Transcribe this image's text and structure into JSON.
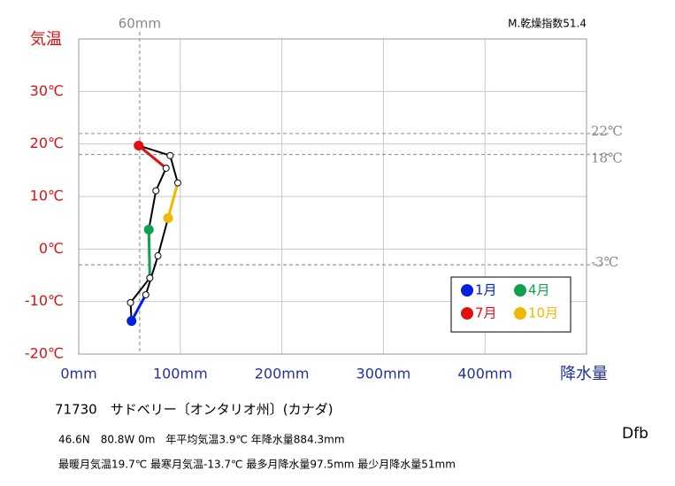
{
  "chart_data": {
    "type": "line",
    "title": "71730　サドベリー〔オンタリオ州〕(カナダ)",
    "subtitle": "M.乾燥指数51.4",
    "notes": [
      "46.6N　80.8W 0m　年平均気温3.9℃ 年降水量884.3mm",
      "最暖月気温19.7℃ 最寒月気温-13.7℃ 最多月降水量97.5mm 最少月降水量51mm"
    ],
    "climate_class": "Dfb",
    "y_label": "気温",
    "x_label": "降水量",
    "x": [
      52,
      51,
      70,
      69,
      76,
      86,
      59,
      90,
      97.5,
      88,
      78,
      66
    ],
    "categories": [
      "1月",
      null,
      null,
      "4月",
      null,
      null,
      "7月",
      null,
      null,
      "10月",
      null,
      null
    ],
    "point_colors": [
      "#0020e0",
      null,
      null,
      "#10a050",
      null,
      null,
      "#e01010",
      null,
      null,
      "#f0b800",
      null,
      null
    ],
    "series": [
      {
        "values": [
          -13.7,
          -10.2,
          -5.5,
          3.7,
          11.1,
          15.4,
          19.7,
          17.8,
          12.6,
          5.9,
          -1.3,
          -8.7
        ],
        "color": "#000000"
      }
    ],
    "xlim": [
      0,
      500
    ],
    "xticks": [
      {
        "value": 0,
        "label": "0mm"
      },
      {
        "value": 100,
        "label": "100mm"
      },
      {
        "value": 200,
        "label": "200mm"
      },
      {
        "value": 300,
        "label": "300mm"
      },
      {
        "value": 400,
        "label": "400mm"
      }
    ],
    "ylim": [
      -20,
      40
    ],
    "yticks": [
      {
        "value": -20,
        "label": "-20℃"
      },
      {
        "value": -10,
        "label": "-10℃"
      },
      {
        "value": 0,
        "label": "0℃"
      },
      {
        "value": 10,
        "label": "10℃"
      },
      {
        "value": 20,
        "label": "20℃"
      },
      {
        "value": 30,
        "label": "30℃"
      }
    ],
    "hlines": [
      {
        "value": 22,
        "label": "22℃"
      },
      {
        "value": 18,
        "label": "18℃"
      },
      {
        "value": -3,
        "label": "-3℃"
      }
    ],
    "vline": {
      "value": 60,
      "label": "60mm"
    },
    "grid": true
  }
}
